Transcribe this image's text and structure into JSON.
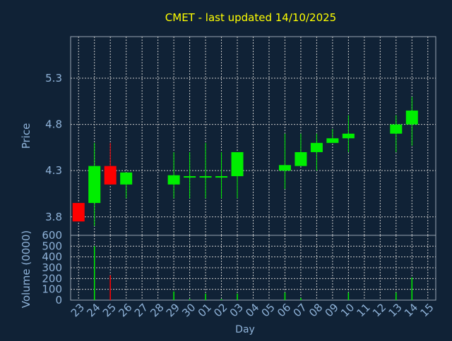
{
  "colors": {
    "background": "#102236",
    "title": "#ffff00",
    "axis_text": "#8fb3d9",
    "grid": "#c8c8c8",
    "frame": "#9aa7b4",
    "up": "#00ee00",
    "down": "#ff0000"
  },
  "chart_data": [
    {
      "type": "candlestick",
      "title": "CMET - last updated 14/10/2025",
      "ylabel": "Price",
      "ylim": [
        3.6,
        5.75
      ],
      "yticks": [
        3.8,
        4.3,
        4.8,
        5.3
      ],
      "grid": true,
      "candles": [
        {
          "day": "23",
          "open": 3.95,
          "high": 3.95,
          "low": 3.75,
          "close": 3.75
        },
        {
          "day": "24",
          "open": 3.95,
          "high": 4.6,
          "low": 3.7,
          "close": 4.35
        },
        {
          "day": "25",
          "open": 4.35,
          "high": 4.6,
          "low": 4.15,
          "close": 4.15
        },
        {
          "day": "26",
          "open": 4.15,
          "high": 4.28,
          "low": 4.0,
          "close": 4.28
        },
        {
          "day": "29",
          "open": 4.15,
          "high": 4.5,
          "low": 4.0,
          "close": 4.25
        },
        {
          "day": "30",
          "open": 4.24,
          "high": 4.5,
          "low": 4.0,
          "close": 4.24
        },
        {
          "day": "01",
          "open": 4.24,
          "high": 4.6,
          "low": 4.0,
          "close": 4.24
        },
        {
          "day": "02",
          "open": 4.24,
          "high": 4.5,
          "low": 4.0,
          "close": 4.24
        },
        {
          "day": "03",
          "open": 4.24,
          "high": 4.5,
          "low": 4.0,
          "close": 4.5
        },
        {
          "day": "06",
          "open": 4.3,
          "high": 4.7,
          "low": 4.1,
          "close": 4.36
        },
        {
          "day": "07",
          "open": 4.35,
          "high": 4.7,
          "low": 4.35,
          "close": 4.5
        },
        {
          "day": "08",
          "open": 4.5,
          "high": 4.7,
          "low": 4.3,
          "close": 4.6
        },
        {
          "day": "09",
          "open": 4.6,
          "high": 4.75,
          "low": 4.6,
          "close": 4.65
        },
        {
          "day": "10",
          "open": 4.65,
          "high": 4.9,
          "low": 4.5,
          "close": 4.7
        },
        {
          "day": "13",
          "open": 4.7,
          "high": 4.9,
          "low": 4.5,
          "close": 4.8
        },
        {
          "day": "14",
          "open": 4.8,
          "high": 5.1,
          "low": 4.57,
          "close": 4.95
        }
      ]
    },
    {
      "type": "bar",
      "ylabel": "Volume (0000)",
      "xlabel": "Day",
      "ylim": [
        0,
        600
      ],
      "yticks": [
        0,
        100,
        200,
        300,
        400,
        500,
        600
      ],
      "categories": [
        "23",
        "24",
        "25",
        "26",
        "27",
        "28",
        "29",
        "30",
        "01",
        "02",
        "03",
        "04",
        "05",
        "06",
        "07",
        "08",
        "09",
        "10",
        "11",
        "12",
        "13",
        "14",
        "15"
      ],
      "values": [
        0,
        500,
        230,
        0,
        0,
        0,
        80,
        10,
        60,
        10,
        60,
        0,
        0,
        70,
        20,
        0,
        0,
        70,
        0,
        0,
        70,
        210,
        0
      ],
      "bar_colors": [
        "up",
        "up",
        "down",
        "up",
        "up",
        "up",
        "up",
        "up",
        "up",
        "up",
        "up",
        "up",
        "up",
        "up",
        "up",
        "up",
        "up",
        "up",
        "up",
        "up",
        "up",
        "up",
        "up"
      ]
    }
  ]
}
